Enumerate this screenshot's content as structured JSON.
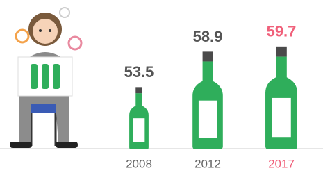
{
  "chart_data": {
    "type": "bar",
    "categories": [
      "2008",
      "2012",
      "2017"
    ],
    "values": [
      53.5,
      58.9,
      59.7
    ],
    "color": "#2fae5b",
    "label_colors": [
      "#555555",
      "#555555",
      "#f0607a"
    ],
    "ylim": [
      44,
      60
    ]
  }
}
